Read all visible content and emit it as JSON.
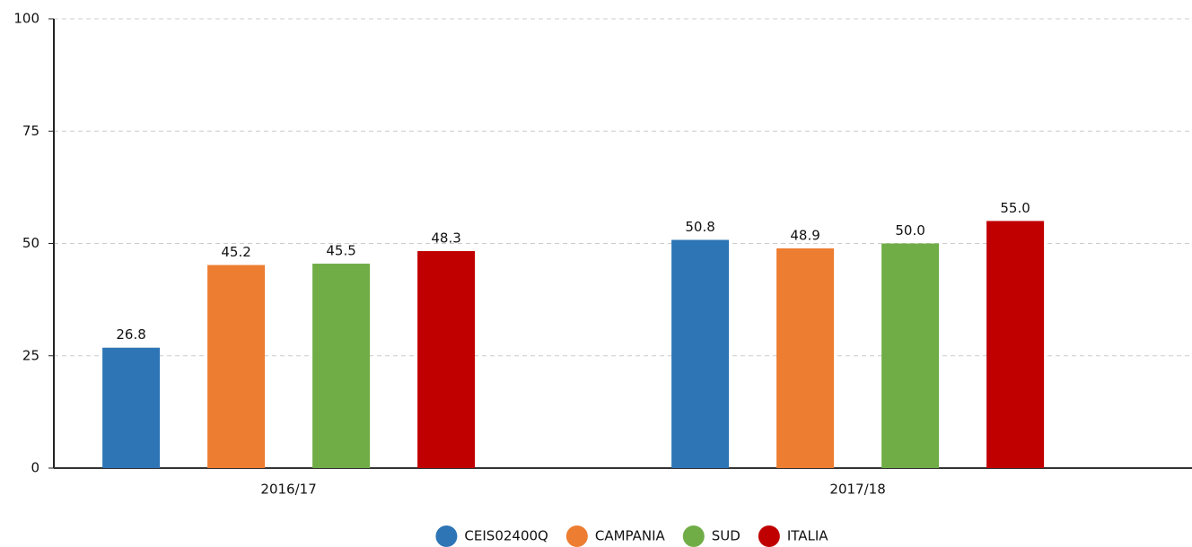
{
  "chart_data": {
    "type": "bar",
    "categories": [
      "2016/17",
      "2017/18"
    ],
    "series": [
      {
        "name": "CEIS02400Q",
        "color": "#2e75b6",
        "values": [
          26.8,
          50.8
        ],
        "value_labels": [
          "26.8",
          "50.8"
        ]
      },
      {
        "name": "CAMPANIA",
        "color": "#ed7d31",
        "values": [
          45.2,
          48.9
        ],
        "value_labels": [
          "45.2",
          "48.9"
        ]
      },
      {
        "name": "SUD",
        "color": "#70ad47",
        "values": [
          45.5,
          50.0
        ],
        "value_labels": [
          "45.5",
          "50.0"
        ]
      },
      {
        "name": "ITALIA",
        "color": "#c00000",
        "values": [
          48.3,
          55.0
        ],
        "value_labels": [
          "48.3",
          "55.0"
        ]
      }
    ],
    "ylim": [
      0,
      100
    ],
    "yticks": [
      0,
      25,
      50,
      75,
      100
    ],
    "grid": true,
    "legend": "bottom"
  }
}
